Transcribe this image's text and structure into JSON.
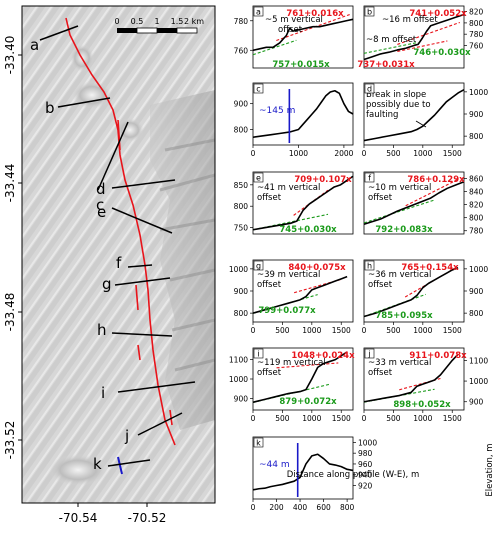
{
  "map": {
    "y_ticks": [
      "-33.40",
      "-33.44",
      "-33.48",
      "-33.52"
    ],
    "x_ticks": [
      "-70.54",
      "-70.52"
    ],
    "scale_numbers": [
      "0",
      "0.5",
      "1",
      "1.5",
      "2 km"
    ],
    "profile_letters": [
      "a",
      "b",
      "c",
      "d",
      "e",
      "f",
      "g",
      "h",
      "i",
      "j",
      "k"
    ]
  },
  "shared": {
    "xlabel": "Distance along profile (W-E), m",
    "ylabel": "Elevation, m"
  },
  "colors": {
    "profile": "#000000",
    "fit_upper": "#e8141b",
    "fit_lower": "#1a9a1a",
    "fault": "#e8141b",
    "marker": "#1919c8"
  },
  "chart_data": [
    {
      "panel": "a",
      "type": "line",
      "xlim": [
        0,
        1500
      ],
      "ylim": [
        748,
        790
      ],
      "xticks": [],
      "yticks": [
        760,
        780
      ],
      "ytick_side": "left",
      "profile": [
        [
          0,
          760
        ],
        [
          100,
          761
        ],
        [
          200,
          762
        ],
        [
          300,
          762
        ],
        [
          400,
          765
        ],
        [
          500,
          770
        ],
        [
          550,
          775
        ],
        [
          600,
          773
        ],
        [
          700,
          774
        ],
        [
          800,
          775
        ],
        [
          900,
          776
        ],
        [
          1000,
          776
        ],
        [
          1100,
          777
        ],
        [
          1200,
          778
        ],
        [
          1300,
          779
        ],
        [
          1400,
          780
        ],
        [
          1500,
          781
        ]
      ],
      "fits": [
        {
          "label": "761+0.016x",
          "color": "red",
          "intercept": 761,
          "slope": 0.016,
          "x_range": [
            350,
            1450
          ]
        },
        {
          "label": "757+0.015x",
          "color": "green",
          "intercept": 757,
          "slope": 0.015,
          "x_range": [
            0,
            650
          ]
        }
      ],
      "annotations": [
        "~5 m vertical",
        "offset"
      ]
    },
    {
      "panel": "b",
      "type": "line",
      "xlim": [
        0,
        1200
      ],
      "ylim": [
        720,
        830
      ],
      "xticks": [],
      "yticks": [
        760,
        780,
        800,
        820
      ],
      "ytick_side": "right",
      "profile": [
        [
          0,
          735
        ],
        [
          100,
          740
        ],
        [
          200,
          745
        ],
        [
          300,
          748
        ],
        [
          400,
          752
        ],
        [
          500,
          755
        ],
        [
          600,
          760
        ],
        [
          650,
          762
        ],
        [
          700,
          773
        ],
        [
          750,
          785
        ],
        [
          800,
          795
        ],
        [
          900,
          800
        ],
        [
          1000,
          805
        ],
        [
          1100,
          810
        ],
        [
          1200,
          815
        ]
      ],
      "fits": [
        {
          "label": "741+0.052x",
          "color": "red",
          "intercept": 741,
          "slope": 0.052,
          "x_range": [
            400,
            1150
          ]
        },
        {
          "label": "737+0.031x",
          "color": "red",
          "intercept": 737,
          "slope": 0.031,
          "x_range": [
            400,
            1000
          ]
        },
        {
          "label": "746+0.030x",
          "color": "green",
          "intercept": 746,
          "slope": 0.03,
          "x_range": [
            0,
            650
          ]
        }
      ],
      "annotations": [
        "~16 m offset",
        "~8 m offset"
      ]
    },
    {
      "panel": "c",
      "type": "line",
      "xlim": [
        0,
        2200
      ],
      "ylim": [
        740,
        980
      ],
      "xticks": [
        0,
        1000,
        2000
      ],
      "yticks": [
        800,
        900
      ],
      "ytick_side": "left",
      "profile": [
        [
          0,
          770
        ],
        [
          200,
          775
        ],
        [
          400,
          780
        ],
        [
          600,
          785
        ],
        [
          800,
          790
        ],
        [
          1000,
          800
        ],
        [
          1100,
          820
        ],
        [
          1200,
          840
        ],
        [
          1300,
          860
        ],
        [
          1400,
          880
        ],
        [
          1500,
          905
        ],
        [
          1600,
          930
        ],
        [
          1700,
          945
        ],
        [
          1800,
          950
        ],
        [
          1900,
          940
        ],
        [
          2000,
          900
        ],
        [
          2100,
          870
        ],
        [
          2200,
          860
        ]
      ],
      "fits": [],
      "marker": {
        "x": 800,
        "label": "~145 m"
      }
    },
    {
      "panel": "d",
      "type": "line",
      "xlim": [
        0,
        1700
      ],
      "ylim": [
        760,
        1040
      ],
      "xticks": [
        0,
        500,
        1000,
        1500
      ],
      "yticks": [
        800,
        900,
        1000
      ],
      "ytick_side": "right",
      "profile": [
        [
          0,
          780
        ],
        [
          200,
          790
        ],
        [
          400,
          800
        ],
        [
          600,
          810
        ],
        [
          800,
          820
        ],
        [
          900,
          830
        ],
        [
          1000,
          845
        ],
        [
          1100,
          870
        ],
        [
          1200,
          895
        ],
        [
          1300,
          925
        ],
        [
          1400,
          955
        ],
        [
          1500,
          975
        ],
        [
          1600,
          995
        ],
        [
          1700,
          1010
        ]
      ],
      "fits": [],
      "annotations": [
        "Break in slope",
        "possibly due to",
        "faulting"
      ]
    },
    {
      "panel": "e",
      "type": "line",
      "xlim": [
        0,
        1600
      ],
      "ylim": [
        735,
        880
      ],
      "xticks": [],
      "yticks": [
        750,
        800,
        850
      ],
      "ytick_side": "left",
      "profile": [
        [
          0,
          745
        ],
        [
          200,
          750
        ],
        [
          400,
          755
        ],
        [
          600,
          760
        ],
        [
          700,
          765
        ],
        [
          800,
          790
        ],
        [
          900,
          805
        ],
        [
          1000,
          815
        ],
        [
          1100,
          825
        ],
        [
          1200,
          835
        ],
        [
          1300,
          845
        ],
        [
          1400,
          850
        ],
        [
          1500,
          860
        ],
        [
          1600,
          870
        ]
      ],
      "fits": [
        {
          "label": "709+0.107x",
          "color": "red",
          "intercept": 709,
          "slope": 0.107,
          "x_range": [
            650,
            1200
          ]
        },
        {
          "label": "745+0.030x",
          "color": "green",
          "intercept": 745,
          "slope": 0.03,
          "x_range": [
            0,
            1200
          ]
        }
      ],
      "annotations": [
        "~41 m vertical",
        "offset"
      ]
    },
    {
      "panel": "f",
      "type": "line",
      "xlim": [
        0,
        600
      ],
      "ylim": [
        775,
        870
      ],
      "xticks": [],
      "yticks": [
        780,
        800,
        820,
        840,
        860
      ],
      "ytick_side": "right",
      "profile": [
        [
          0,
          790
        ],
        [
          100,
          798
        ],
        [
          200,
          810
        ],
        [
          250,
          815
        ],
        [
          300,
          820
        ],
        [
          350,
          825
        ],
        [
          400,
          830
        ],
        [
          450,
          838
        ],
        [
          500,
          845
        ],
        [
          550,
          850
        ],
        [
          600,
          855
        ]
      ],
      "fits": [
        {
          "label": "786+0.129x",
          "color": "red",
          "intercept": 786,
          "slope": 0.129,
          "x_range": [
            250,
            560
          ]
        },
        {
          "label": "792+0.083x",
          "color": "green",
          "intercept": 792,
          "slope": 0.083,
          "x_range": [
            0,
            420
          ]
        }
      ],
      "annotations": [
        "~10 m vertical",
        "offset"
      ]
    },
    {
      "panel": "g",
      "type": "line",
      "xlim": [
        0,
        1700
      ],
      "ylim": [
        760,
        1040
      ],
      "xticks": [
        0,
        500,
        1000,
        1500
      ],
      "yticks": [
        800,
        900,
        1000
      ],
      "ytick_side": "left",
      "profile": [
        [
          0,
          800
        ],
        [
          200,
          815
        ],
        [
          400,
          830
        ],
        [
          600,
          845
        ],
        [
          800,
          860
        ],
        [
          900,
          875
        ],
        [
          1000,
          905
        ],
        [
          1100,
          915
        ],
        [
          1200,
          925
        ],
        [
          1300,
          935
        ],
        [
          1400,
          945
        ],
        [
          1500,
          955
        ],
        [
          1600,
          965
        ]
      ],
      "fits": [
        {
          "label": "840+0.075x",
          "color": "red",
          "intercept": 840,
          "slope": 0.075,
          "x_range": [
            700,
            1500
          ]
        },
        {
          "label": "799+0.077x",
          "color": "green",
          "intercept": 799,
          "slope": 0.077,
          "x_range": [
            0,
            1100
          ]
        }
      ],
      "annotations": [
        "~39 m vertical",
        "offset"
      ]
    },
    {
      "panel": "h",
      "type": "line",
      "xlim": [
        0,
        1700
      ],
      "ylim": [
        760,
        1040
      ],
      "xticks": [
        0,
        500,
        1000,
        1500
      ],
      "yticks": [
        800,
        900,
        1000
      ],
      "ytick_side": "right",
      "profile": [
        [
          0,
          785
        ],
        [
          200,
          800
        ],
        [
          400,
          820
        ],
        [
          600,
          840
        ],
        [
          800,
          860
        ],
        [
          900,
          880
        ],
        [
          1000,
          915
        ],
        [
          1100,
          935
        ],
        [
          1200,
          950
        ],
        [
          1300,
          965
        ],
        [
          1400,
          980
        ],
        [
          1500,
          995
        ],
        [
          1600,
          1005
        ]
      ],
      "fits": [
        {
          "label": "765+0.154x",
          "color": "red",
          "intercept": 765,
          "slope": 0.154,
          "x_range": [
            700,
            1550
          ]
        },
        {
          "label": "785+0.095x",
          "color": "green",
          "intercept": 785,
          "slope": 0.095,
          "x_range": [
            0,
            1050
          ]
        }
      ],
      "annotations": [
        "~36 m vertical",
        "offset"
      ]
    },
    {
      "panel": "i",
      "type": "line",
      "xlim": [
        0,
        1700
      ],
      "ylim": [
        840,
        1160
      ],
      "xticks": [
        0,
        500,
        1000,
        1500
      ],
      "yticks": [
        900,
        1000,
        1100
      ],
      "ytick_side": "left",
      "profile": [
        [
          0,
          880
        ],
        [
          200,
          895
        ],
        [
          400,
          910
        ],
        [
          600,
          925
        ],
        [
          800,
          935
        ],
        [
          900,
          945
        ],
        [
          1000,
          1000
        ],
        [
          1100,
          1060
        ],
        [
          1200,
          1080
        ],
        [
          1300,
          1090
        ],
        [
          1400,
          1100
        ],
        [
          1500,
          1120
        ],
        [
          1600,
          1140
        ]
      ],
      "fits": [
        {
          "label": "1048+0.024x",
          "color": "red",
          "intercept": 1048,
          "slope": 0.024,
          "x_range": [
            400,
            1450
          ]
        },
        {
          "label": "879+0.072x",
          "color": "green",
          "intercept": 879,
          "slope": 0.072,
          "x_range": [
            0,
            1300
          ]
        }
      ],
      "annotations": [
        "~119 m vertical",
        "offset"
      ]
    },
    {
      "panel": "j",
      "type": "line",
      "xlim": [
        0,
        1700
      ],
      "ylim": [
        860,
        1160
      ],
      "xticks": [
        0,
        500,
        1000,
        1500
      ],
      "yticks": [
        900,
        1000,
        1100
      ],
      "ytick_side": "right",
      "profile": [
        [
          0,
          900
        ],
        [
          200,
          910
        ],
        [
          400,
          920
        ],
        [
          600,
          930
        ],
        [
          800,
          945
        ],
        [
          900,
          975
        ],
        [
          1000,
          985
        ],
        [
          1100,
          995
        ],
        [
          1200,
          1005
        ],
        [
          1300,
          1030
        ],
        [
          1400,
          1065
        ],
        [
          1500,
          1100
        ],
        [
          1600,
          1130
        ]
      ],
      "fits": [
        {
          "label": "911+0.078x",
          "color": "red",
          "intercept": 911,
          "slope": 0.078,
          "x_range": [
            600,
            1300
          ]
        },
        {
          "label": "898+0.052x",
          "color": "green",
          "intercept": 898,
          "slope": 0.052,
          "x_range": [
            0,
            1200
          ]
        }
      ],
      "annotations": [
        "~33 m vertical",
        "offset"
      ]
    },
    {
      "panel": "k",
      "type": "line",
      "xlim": [
        0,
        850
      ],
      "ylim": [
        895,
        1010
      ],
      "xticks": [
        0,
        200,
        400,
        600,
        800
      ],
      "yticks": [
        920,
        940,
        960,
        980,
        1000
      ],
      "ytick_side": "right",
      "profile": [
        [
          0,
          912
        ],
        [
          50,
          914
        ],
        [
          100,
          915
        ],
        [
          150,
          918
        ],
        [
          200,
          920
        ],
        [
          250,
          922
        ],
        [
          300,
          925
        ],
        [
          350,
          928
        ],
        [
          400,
          935
        ],
        [
          450,
          960
        ],
        [
          500,
          975
        ],
        [
          550,
          978
        ],
        [
          600,
          970
        ],
        [
          650,
          960
        ],
        [
          700,
          958
        ],
        [
          750,
          955
        ],
        [
          800,
          950
        ],
        [
          850,
          948
        ]
      ],
      "fits": [],
      "marker": {
        "x": 380,
        "label": "~44 m"
      }
    }
  ]
}
